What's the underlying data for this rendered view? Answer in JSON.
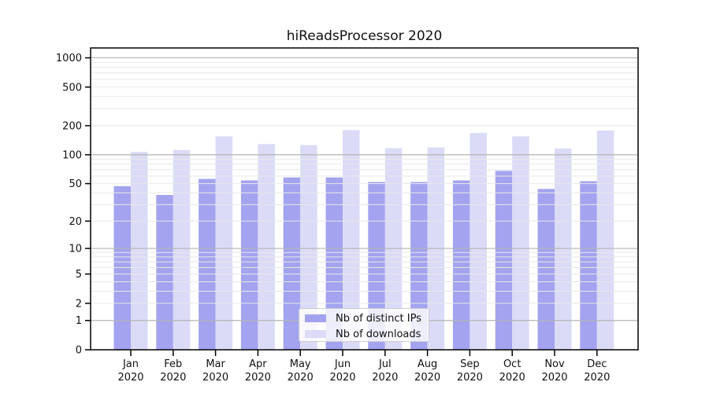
{
  "chart_data": {
    "type": "bar",
    "title": "hiReadsProcessor 2020",
    "categories": [
      "Jan",
      "Feb",
      "Mar",
      "Apr",
      "May",
      "Jun",
      "Jul",
      "Aug",
      "Sep",
      "Oct",
      "Nov",
      "Dec"
    ],
    "category_year": "2020",
    "series": [
      {
        "name": "Nb of distinct IPs",
        "color": "#a3a3ef",
        "values": [
          47,
          38,
          56,
          54,
          58,
          58,
          52,
          52,
          54,
          68,
          44,
          53
        ]
      },
      {
        "name": "Nb of downloads",
        "color": "#dbdbf7",
        "values": [
          107,
          112,
          155,
          129,
          126,
          180,
          117,
          119,
          168,
          155,
          116,
          178
        ]
      }
    ],
    "yscale": "log1p",
    "yticks": [
      0,
      1,
      2,
      5,
      10,
      20,
      50,
      100,
      200,
      500,
      1000
    ],
    "ylim": [
      0,
      1264
    ],
    "grid": {
      "on": true,
      "major_lines": [
        1,
        10,
        100,
        1000
      ],
      "minor_steps": [
        2,
        3,
        4,
        5,
        6,
        7,
        8,
        9
      ]
    },
    "legend": {
      "position": "lower center"
    },
    "colors": {
      "spine": "#000000",
      "major_grid": "#b4b4b4",
      "minor_grid": "#e8e8e8",
      "text": "#111111"
    }
  }
}
